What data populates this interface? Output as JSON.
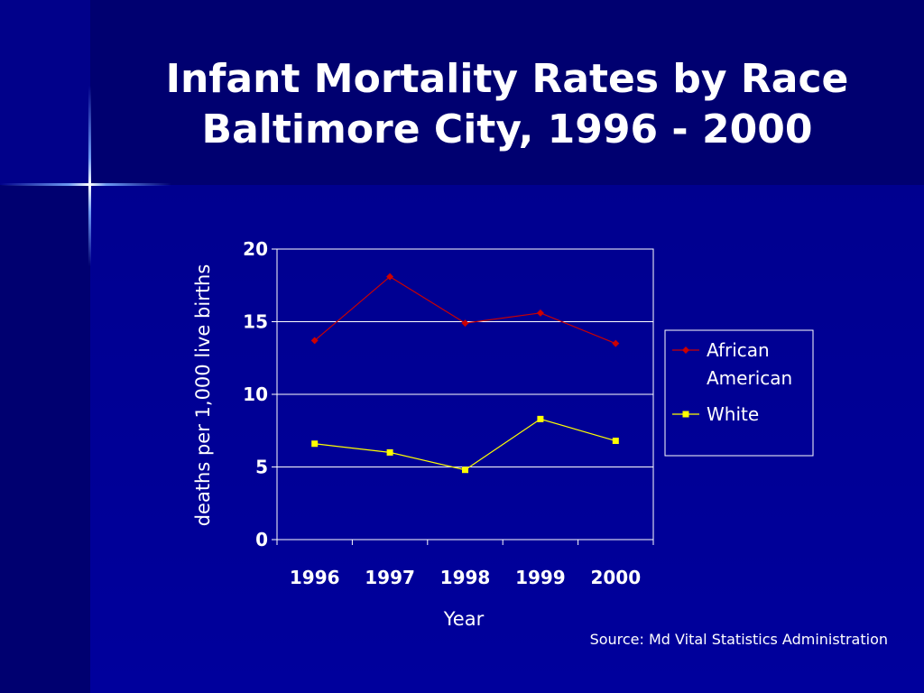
{
  "slide": {
    "title_line1": "Infant Mortality Rates by Race",
    "title_line2": "Baltimore City, 1996 - 2000",
    "source": "Source: Md Vital Statistics Administration"
  },
  "colors": {
    "background": "#01018a",
    "text": "#ffffff",
    "african_american": "#cc0000",
    "white": "#ffff00"
  },
  "chart_data": {
    "type": "line",
    "xlabel": "Year",
    "ylabel": "deaths per 1,000 live births",
    "ylim": [
      0,
      20
    ],
    "yticks": [
      0,
      5,
      10,
      15,
      20
    ],
    "grid": true,
    "legend_position": "right",
    "categories": [
      "1996",
      "1997",
      "1998",
      "1999",
      "2000"
    ],
    "series": [
      {
        "name": "African American",
        "name_lines": [
          "African",
          "American"
        ],
        "values": [
          13.7,
          18.1,
          14.9,
          15.6,
          13.5
        ],
        "color": "#cc0000",
        "marker": "diamond"
      },
      {
        "name": "White",
        "name_lines": [
          "White"
        ],
        "values": [
          6.6,
          6.0,
          4.8,
          8.3,
          6.8
        ],
        "color": "#ffff00",
        "marker": "square"
      }
    ]
  }
}
